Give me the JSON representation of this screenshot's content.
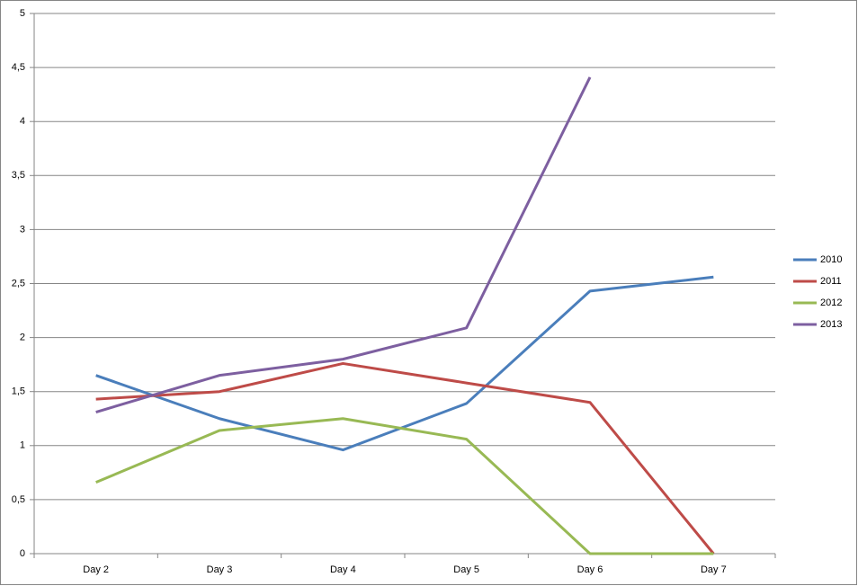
{
  "chart_data": {
    "type": "line",
    "categories": [
      "Day 2",
      "Day 3",
      "Day 4",
      "Day 5",
      "Day 6",
      "Day 7"
    ],
    "series": [
      {
        "name": "2010",
        "color": "#4a7ebb",
        "values": [
          1.65,
          1.25,
          0.96,
          1.39,
          2.43,
          2.56
        ]
      },
      {
        "name": "2011",
        "color": "#be4b48",
        "values": [
          1.43,
          1.5,
          1.76,
          1.58,
          1.4,
          0
        ]
      },
      {
        "name": "2012",
        "color": "#98b954",
        "values": [
          0.66,
          1.14,
          1.25,
          1.06,
          0,
          0
        ]
      },
      {
        "name": "2013",
        "color": "#7d5fa0",
        "values": [
          1.31,
          1.65,
          1.8,
          2.09,
          4.41,
          null
        ]
      }
    ],
    "ylim": [
      0,
      5
    ],
    "yticks": [
      0,
      {
        "value": 0.5,
        "label": "0,5"
      },
      1,
      {
        "value": 1.5,
        "label": "1,5"
      },
      2,
      {
        "value": 2.5,
        "label": "2,5"
      },
      3,
      {
        "value": 3.5,
        "label": "3,5"
      },
      4,
      {
        "value": 4.5,
        "label": "4,5"
      },
      5
    ],
    "grid": true,
    "legend": "right"
  }
}
